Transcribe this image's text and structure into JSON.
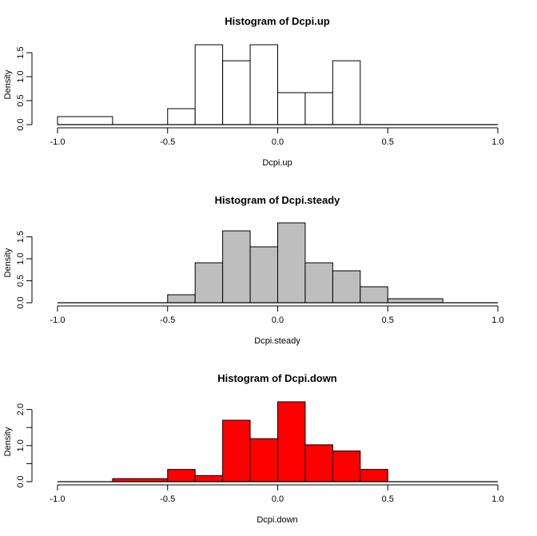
{
  "chart_data": [
    {
      "type": "bar",
      "title": "Histogram of Dcpi.up",
      "xlabel": "Dcpi.up",
      "ylabel": "Density",
      "xlim": [
        -1,
        1
      ],
      "ylim": [
        0,
        1.667
      ],
      "xticks": [
        "-1.0",
        "-0.5",
        "0.0",
        "0.5",
        "1.0"
      ],
      "yticks": [
        "0.0",
        "0.5",
        "1.0",
        "1.5"
      ],
      "ytick_values": [
        0,
        0.5,
        1.0,
        1.5
      ],
      "fill": "#ffffff",
      "bins": [
        {
          "from": -1,
          "to": -0.75,
          "density": 0.167
        },
        {
          "from": -0.75,
          "to": -0.5,
          "density": 0
        },
        {
          "from": -0.5,
          "to": -0.375,
          "density": 0.333
        },
        {
          "from": -0.375,
          "to": -0.25,
          "density": 1.667
        },
        {
          "from": -0.25,
          "to": -0.125,
          "density": 1.333
        },
        {
          "from": -0.125,
          "to": 0,
          "density": 1.667
        },
        {
          "from": 0,
          "to": 0.125,
          "density": 0.667
        },
        {
          "from": 0.125,
          "to": 0.25,
          "density": 0.667
        },
        {
          "from": 0.25,
          "to": 0.375,
          "density": 1.333
        },
        {
          "from": 0.375,
          "to": 0.5,
          "density": 0
        },
        {
          "from": 0.5,
          "to": 0.75,
          "density": 0
        },
        {
          "from": 0.75,
          "to": 1,
          "density": 0
        }
      ]
    },
    {
      "type": "bar",
      "title": "Histogram of Dcpi.steady",
      "xlabel": "Dcpi.steady",
      "ylabel": "Density",
      "xlim": [
        -1,
        1
      ],
      "ylim": [
        0,
        1.818
      ],
      "xticks": [
        "-1.0",
        "-0.5",
        "0.0",
        "0.5",
        "1.0"
      ],
      "yticks": [
        "0.0",
        "0.5",
        "1.0",
        "1.5"
      ],
      "ytick_values": [
        0,
        0.5,
        1.0,
        1.5
      ],
      "fill": "#bebebe",
      "bins": [
        {
          "from": -1,
          "to": -0.75,
          "density": 0
        },
        {
          "from": -0.75,
          "to": -0.5,
          "density": 0
        },
        {
          "from": -0.5,
          "to": -0.375,
          "density": 0.182
        },
        {
          "from": -0.375,
          "to": -0.25,
          "density": 0.909
        },
        {
          "from": -0.25,
          "to": -0.125,
          "density": 1.636
        },
        {
          "from": -0.125,
          "to": 0,
          "density": 1.273
        },
        {
          "from": 0,
          "to": 0.125,
          "density": 1.818
        },
        {
          "from": 0.125,
          "to": 0.25,
          "density": 0.909
        },
        {
          "from": 0.25,
          "to": 0.375,
          "density": 0.727
        },
        {
          "from": 0.375,
          "to": 0.5,
          "density": 0.364
        },
        {
          "from": 0.5,
          "to": 0.75,
          "density": 0.091
        },
        {
          "from": 0.75,
          "to": 1,
          "density": 0
        }
      ]
    },
    {
      "type": "bar",
      "title": "Histogram of Dcpi.down",
      "xlabel": "Dcpi.down",
      "ylabel": "Density",
      "xlim": [
        -1,
        1
      ],
      "ylim": [
        0,
        2.213
      ],
      "xticks": [
        "-1.0",
        "-0.5",
        "0.0",
        "0.5",
        "1.0"
      ],
      "yticks": [
        "0.0",
        "",
        "1.0",
        "",
        "2.0"
      ],
      "ytick_values": [
        0,
        0.5,
        1.0,
        1.5,
        2.0
      ],
      "fill": "#ff0000",
      "bins": [
        {
          "from": -1,
          "to": -0.75,
          "density": 0
        },
        {
          "from": -0.75,
          "to": -0.5,
          "density": 0.085
        },
        {
          "from": -0.5,
          "to": -0.375,
          "density": 0.34
        },
        {
          "from": -0.375,
          "to": -0.25,
          "density": 0.17
        },
        {
          "from": -0.25,
          "to": -0.125,
          "density": 1.702
        },
        {
          "from": -0.125,
          "to": 0,
          "density": 1.191
        },
        {
          "from": 0,
          "to": 0.125,
          "density": 2.213
        },
        {
          "from": 0.125,
          "to": 0.25,
          "density": 1.021
        },
        {
          "from": 0.25,
          "to": 0.375,
          "density": 0.851
        },
        {
          "from": 0.375,
          "to": 0.5,
          "density": 0.34
        },
        {
          "from": 0.5,
          "to": 0.75,
          "density": 0
        },
        {
          "from": 0.75,
          "to": 1,
          "density": 0
        }
      ]
    }
  ]
}
